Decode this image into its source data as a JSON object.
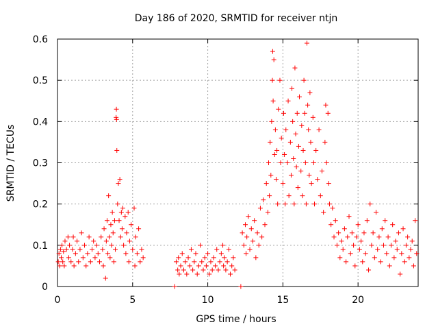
{
  "chart_data": {
    "type": "scatter",
    "title": "Day 186 of 2020, SRMTID for receiver ntjn",
    "xlabel": "GPS time / hours",
    "ylabel": "SRMTID / TECUs",
    "xlim": [
      0,
      24
    ],
    "ylim": [
      0,
      0.6
    ],
    "xticks": [
      0,
      5,
      10,
      15,
      20
    ],
    "yticks": [
      0,
      0.1,
      0.2,
      0.3,
      0.4,
      0.5,
      0.6
    ],
    "xtick_labels": [
      "0",
      "5",
      "10",
      "15",
      "20"
    ],
    "ytick_labels": [
      "0",
      "0.1",
      "0.2",
      "0.3",
      "0.4",
      "0.5",
      "0.6"
    ],
    "grid": true,
    "marker": "+",
    "series_color": "#ff0000",
    "series": [
      {
        "name": "SRMTID",
        "points": [
          [
            0.05,
            0.06
          ],
          [
            0.1,
            0.08
          ],
          [
            0.15,
            0.05
          ],
          [
            0.2,
            0.09
          ],
          [
            0.25,
            0.07
          ],
          [
            0.3,
            0.1
          ],
          [
            0.35,
            0.06
          ],
          [
            0.4,
            0.085
          ],
          [
            0.45,
            0.05
          ],
          [
            0.5,
            0.11
          ],
          [
            0.6,
            0.09
          ],
          [
            0.7,
            0.12
          ],
          [
            0.75,
            0.07
          ],
          [
            0.8,
            0.1
          ],
          [
            0.9,
            0.06
          ],
          [
            1.0,
            0.09
          ],
          [
            1.05,
            0.12
          ],
          [
            1.1,
            0.05
          ],
          [
            1.2,
            0.08
          ],
          [
            1.3,
            0.11
          ],
          [
            1.4,
            0.06
          ],
          [
            1.5,
            0.09
          ],
          [
            1.6,
            0.13
          ],
          [
            1.7,
            0.07
          ],
          [
            1.8,
            0.1
          ],
          [
            1.9,
            0.05
          ],
          [
            2.0,
            0.08
          ],
          [
            2.1,
            0.12
          ],
          [
            2.2,
            0.06
          ],
          [
            2.3,
            0.09
          ],
          [
            2.4,
            0.11
          ],
          [
            2.5,
            0.07
          ],
          [
            2.6,
            0.1
          ],
          [
            2.7,
            0.08
          ],
          [
            2.8,
            0.06
          ],
          [
            2.9,
            0.12
          ],
          [
            3.0,
            0.09
          ],
          [
            3.05,
            0.05
          ],
          [
            3.1,
            0.14
          ],
          [
            3.2,
            0.02
          ],
          [
            3.25,
            0.11
          ],
          [
            3.3,
            0.16
          ],
          [
            3.35,
            0.08
          ],
          [
            3.4,
            0.22
          ],
          [
            3.45,
            0.12
          ],
          [
            3.5,
            0.07
          ],
          [
            3.55,
            0.15
          ],
          [
            3.6,
            0.1
          ],
          [
            3.65,
            0.18
          ],
          [
            3.7,
            0.13
          ],
          [
            3.75,
            0.06
          ],
          [
            3.8,
            0.16
          ],
          [
            3.85,
            0.09
          ],
          [
            3.9,
            0.41
          ],
          [
            3.92,
            0.43
          ],
          [
            3.93,
            0.405
          ],
          [
            3.95,
            0.33
          ],
          [
            4.0,
            0.2
          ],
          [
            4.05,
            0.25
          ],
          [
            4.1,
            0.16
          ],
          [
            4.15,
            0.26
          ],
          [
            4.2,
            0.12
          ],
          [
            4.25,
            0.18
          ],
          [
            4.3,
            0.14
          ],
          [
            4.35,
            0.19
          ],
          [
            4.4,
            0.1
          ],
          [
            4.5,
            0.17
          ],
          [
            4.55,
            0.08
          ],
          [
            4.6,
            0.13
          ],
          [
            4.7,
            0.18
          ],
          [
            4.75,
            0.06
          ],
          [
            4.8,
            0.11
          ],
          [
            4.9,
            0.15
          ],
          [
            5.0,
            0.09
          ],
          [
            5.1,
            0.19
          ],
          [
            5.15,
            0.05
          ],
          [
            5.2,
            0.12
          ],
          [
            5.3,
            0.08
          ],
          [
            5.4,
            0.14
          ],
          [
            5.5,
            0.06
          ],
          [
            5.6,
            0.09
          ],
          [
            5.7,
            0.07
          ],
          [
            7.8,
            0.0
          ],
          [
            7.9,
            0.06
          ],
          [
            8.0,
            0.04
          ],
          [
            8.05,
            0.07
          ],
          [
            8.1,
            0.03
          ],
          [
            8.2,
            0.05
          ],
          [
            8.3,
            0.08
          ],
          [
            8.4,
            0.04
          ],
          [
            8.5,
            0.06
          ],
          [
            8.6,
            0.03
          ],
          [
            8.7,
            0.07
          ],
          [
            8.8,
            0.05
          ],
          [
            8.9,
            0.09
          ],
          [
            9.0,
            0.04
          ],
          [
            9.1,
            0.06
          ],
          [
            9.2,
            0.08
          ],
          [
            9.3,
            0.03
          ],
          [
            9.4,
            0.05
          ],
          [
            9.5,
            0.1
          ],
          [
            9.6,
            0.06
          ],
          [
            9.7,
            0.04
          ],
          [
            9.8,
            0.07
          ],
          [
            9.9,
            0.05
          ],
          [
            10.0,
            0.08
          ],
          [
            10.1,
            0.03
          ],
          [
            10.2,
            0.06
          ],
          [
            10.3,
            0.04
          ],
          [
            10.4,
            0.07
          ],
          [
            10.5,
            0.05
          ],
          [
            10.6,
            0.09
          ],
          [
            10.7,
            0.04
          ],
          [
            10.8,
            0.06
          ],
          [
            10.9,
            0.08
          ],
          [
            11.0,
            0.1
          ],
          [
            11.05,
            0.05
          ],
          [
            11.1,
            0.07
          ],
          [
            11.2,
            0.04
          ],
          [
            11.3,
            0.06
          ],
          [
            11.4,
            0.09
          ],
          [
            11.5,
            0.03
          ],
          [
            11.6,
            0.05
          ],
          [
            11.7,
            0.07
          ],
          [
            11.8,
            0.04
          ],
          [
            12.2,
            0.0
          ],
          [
            12.3,
            0.13
          ],
          [
            12.4,
            0.1
          ],
          [
            12.5,
            0.15
          ],
          [
            12.55,
            0.08
          ],
          [
            12.6,
            0.12
          ],
          [
            12.7,
            0.17
          ],
          [
            12.8,
            0.09
          ],
          [
            12.9,
            0.14
          ],
          [
            13.0,
            0.11
          ],
          [
            13.1,
            0.16
          ],
          [
            13.2,
            0.07
          ],
          [
            13.3,
            0.13
          ],
          [
            13.4,
            0.1
          ],
          [
            13.5,
            0.19
          ],
          [
            13.6,
            0.12
          ],
          [
            13.7,
            0.21
          ],
          [
            13.8,
            0.15
          ],
          [
            13.9,
            0.25
          ],
          [
            14.0,
            0.18
          ],
          [
            14.05,
            0.3
          ],
          [
            14.1,
            0.22
          ],
          [
            14.15,
            0.35
          ],
          [
            14.2,
            0.27
          ],
          [
            14.25,
            0.4
          ],
          [
            14.3,
            0.5
          ],
          [
            14.32,
            0.57
          ],
          [
            14.35,
            0.45
          ],
          [
            14.4,
            0.55
          ],
          [
            14.45,
            0.32
          ],
          [
            14.5,
            0.38
          ],
          [
            14.55,
            0.26
          ],
          [
            14.6,
            0.33
          ],
          [
            14.65,
            0.2
          ],
          [
            14.7,
            0.43
          ],
          [
            14.8,
            0.5
          ],
          [
            14.85,
            0.3
          ],
          [
            14.9,
            0.36
          ],
          [
            15.0,
            0.25
          ],
          [
            15.05,
            0.42
          ],
          [
            15.1,
            0.32
          ],
          [
            15.15,
            0.2
          ],
          [
            15.2,
            0.38
          ],
          [
            15.3,
            0.3
          ],
          [
            15.35,
            0.45
          ],
          [
            15.4,
            0.22
          ],
          [
            15.5,
            0.35
          ],
          [
            15.55,
            0.27
          ],
          [
            15.6,
            0.48
          ],
          [
            15.65,
            0.4
          ],
          [
            15.7,
            0.31
          ],
          [
            15.75,
            0.2
          ],
          [
            15.8,
            0.53
          ],
          [
            15.85,
            0.37
          ],
          [
            15.9,
            0.29
          ],
          [
            15.95,
            0.42
          ],
          [
            16.0,
            0.24
          ],
          [
            16.05,
            0.34
          ],
          [
            16.1,
            0.46
          ],
          [
            16.2,
            0.28
          ],
          [
            16.25,
            0.39
          ],
          [
            16.3,
            0.22
          ],
          [
            16.35,
            0.33
          ],
          [
            16.4,
            0.5
          ],
          [
            16.45,
            0.42
          ],
          [
            16.5,
            0.3
          ],
          [
            16.55,
            0.2
          ],
          [
            16.6,
            0.59
          ],
          [
            16.65,
            0.44
          ],
          [
            16.7,
            0.38
          ],
          [
            16.75,
            0.27
          ],
          [
            16.8,
            0.47
          ],
          [
            16.85,
            0.35
          ],
          [
            16.9,
            0.25
          ],
          [
            17.0,
            0.41
          ],
          [
            17.05,
            0.3
          ],
          [
            17.1,
            0.2
          ],
          [
            17.2,
            0.33
          ],
          [
            17.3,
            0.26
          ],
          [
            17.4,
            0.38
          ],
          [
            17.5,
            0.22
          ],
          [
            17.6,
            0.28
          ],
          [
            17.7,
            0.18
          ],
          [
            17.8,
            0.35
          ],
          [
            17.85,
            0.44
          ],
          [
            17.9,
            0.3
          ],
          [
            18.0,
            0.42
          ],
          [
            18.05,
            0.25
          ],
          [
            18.1,
            0.2
          ],
          [
            18.2,
            0.15
          ],
          [
            18.3,
            0.19
          ],
          [
            18.4,
            0.12
          ],
          [
            18.5,
            0.16
          ],
          [
            18.6,
            0.1
          ],
          [
            18.7,
            0.13
          ],
          [
            18.8,
            0.07
          ],
          [
            18.9,
            0.11
          ],
          [
            19.0,
            0.09
          ],
          [
            19.1,
            0.14
          ],
          [
            19.2,
            0.06
          ],
          [
            19.3,
            0.12
          ],
          [
            19.4,
            0.17
          ],
          [
            19.5,
            0.08
          ],
          [
            19.6,
            0.13
          ],
          [
            19.7,
            0.1
          ],
          [
            19.8,
            0.05
          ],
          [
            19.9,
            0.12
          ],
          [
            20.0,
            0.15
          ],
          [
            20.1,
            0.09
          ],
          [
            20.2,
            0.11
          ],
          [
            20.3,
            0.06
          ],
          [
            20.4,
            0.13
          ],
          [
            20.5,
            0.08
          ],
          [
            20.6,
            0.16
          ],
          [
            20.7,
            0.04
          ],
          [
            20.8,
            0.2
          ],
          [
            20.9,
            0.1
          ],
          [
            21.0,
            0.13
          ],
          [
            21.1,
            0.07
          ],
          [
            21.2,
            0.18
          ],
          [
            21.3,
            0.09
          ],
          [
            21.4,
            0.12
          ],
          [
            21.5,
            0.06
          ],
          [
            21.6,
            0.14
          ],
          [
            21.7,
            0.1
          ],
          [
            21.8,
            0.16
          ],
          [
            21.9,
            0.08
          ],
          [
            22.0,
            0.12
          ],
          [
            22.1,
            0.05
          ],
          [
            22.2,
            0.1
          ],
          [
            22.3,
            0.15
          ],
          [
            22.4,
            0.07
          ],
          [
            22.5,
            0.11
          ],
          [
            22.6,
            0.09
          ],
          [
            22.7,
            0.13
          ],
          [
            22.8,
            0.03
          ],
          [
            22.9,
            0.08
          ],
          [
            23.0,
            0.14
          ],
          [
            23.1,
            0.06
          ],
          [
            23.2,
            0.1
          ],
          [
            23.3,
            0.12
          ],
          [
            23.4,
            0.07
          ],
          [
            23.5,
            0.09
          ],
          [
            23.6,
            0.11
          ],
          [
            23.7,
            0.05
          ],
          [
            23.8,
            0.16
          ],
          [
            23.9,
            0.08
          ]
        ]
      }
    ]
  }
}
